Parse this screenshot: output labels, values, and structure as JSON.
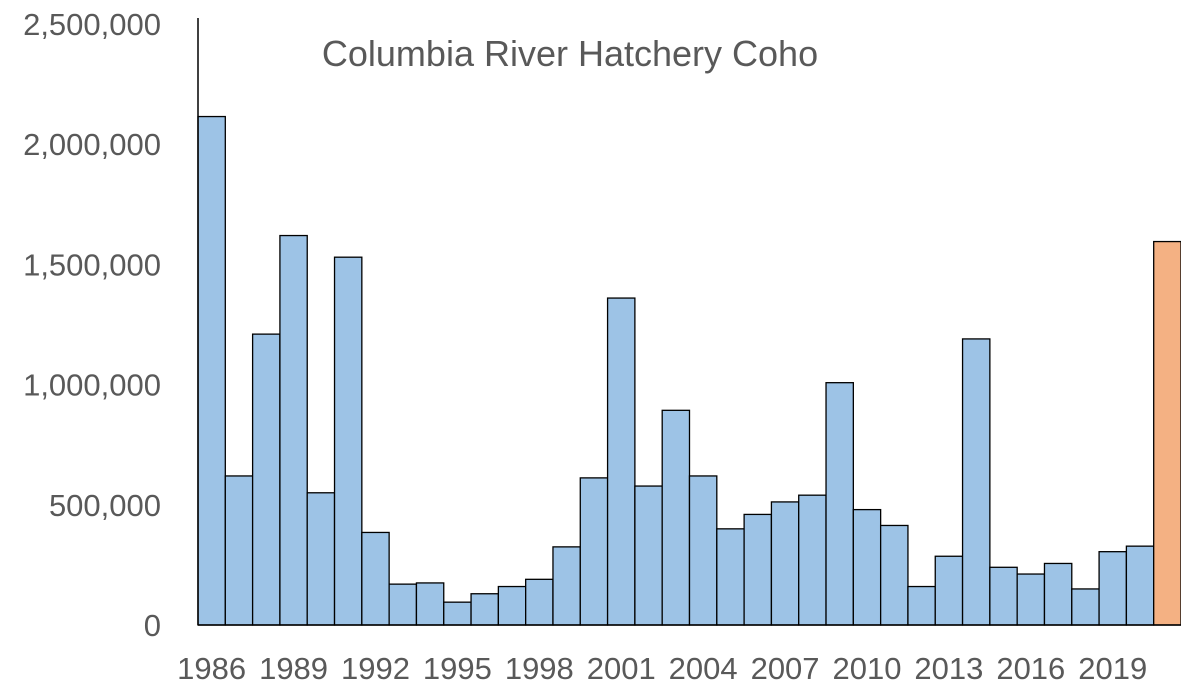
{
  "chart_data": {
    "type": "bar",
    "title": "Columbia River Hatchery Coho",
    "xlabel": "",
    "ylabel": "",
    "ylim": [
      0,
      2500000
    ],
    "yticks": [
      0,
      500000,
      1000000,
      1500000,
      2000000,
      2500000
    ],
    "ytick_labels": [
      "0",
      "500,000",
      "1,000,000",
      "1,500,000",
      "2,000,000",
      "2,500,000"
    ],
    "xtick_labels": [
      "1986",
      "1989",
      "1992",
      "1995",
      "1998",
      "2001",
      "2004",
      "2007",
      "2010",
      "2013",
      "2016",
      "2019"
    ],
    "grid": false,
    "colors": {
      "bar": "#9DC3E6",
      "forecast_bar": "#F4B183",
      "border": "#000000",
      "text": "#595959"
    },
    "categories": [
      "1986",
      "1987",
      "1988",
      "1989",
      "1990",
      "1991",
      "1992",
      "1993",
      "1994",
      "1995",
      "1996",
      "1997",
      "1998",
      "1999",
      "2000",
      "2001",
      "2002",
      "2003",
      "2004",
      "2005",
      "2006",
      "2007",
      "2008",
      "2009",
      "2010",
      "2011",
      "2012",
      "2013",
      "2014",
      "2015",
      "2016",
      "2017",
      "2018",
      "2019",
      "2020",
      "2021"
    ],
    "values": [
      2115000,
      620000,
      1210000,
      1620000,
      550000,
      1530000,
      385000,
      170000,
      175000,
      95000,
      130000,
      160000,
      190000,
      325000,
      612000,
      1360000,
      578000,
      893000,
      620000,
      400000,
      460000,
      512000,
      540000,
      1008000,
      480000,
      414000,
      160000,
      286000,
      1190000,
      240000,
      212000,
      256000,
      150000,
      305000,
      328000,
      1595000
    ],
    "highlight_index": 35
  }
}
